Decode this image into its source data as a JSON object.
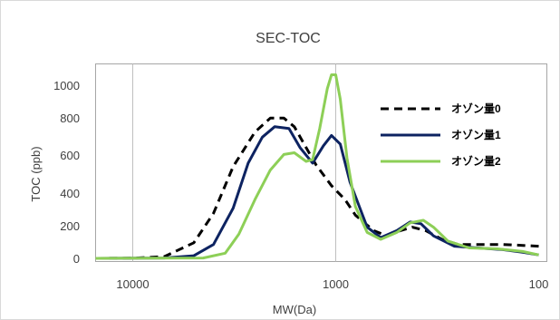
{
  "chart_data": {
    "type": "line",
    "title": "SEC-TOC",
    "xlabel": "MW(Da)",
    "ylabel": "TOC (ppb)",
    "x_scale": "log",
    "x_reversed": true,
    "xlim": [
      20000,
      100
    ],
    "ylim": [
      0,
      1100
    ],
    "x_ticks": [
      10000,
      1000,
      100
    ],
    "x_tick_labels": [
      "10000",
      "1000",
      "100"
    ],
    "y_tick_labels": [
      "0",
      "200",
      "400",
      "600",
      "800",
      "1000"
    ],
    "grid": "vertical",
    "legend_position": "top-right",
    "series": [
      {
        "name": "オゾン量0",
        "color": "#000000",
        "dash": "dashed",
        "x": [
          20000,
          10000,
          7000,
          5000,
          4000,
          3200,
          2500,
          2100,
          1800,
          1600,
          1400,
          1250,
          1050,
          900,
          800,
          650,
          560,
          480,
          420,
          360,
          300,
          250,
          200,
          150,
          120,
          100
        ],
        "y": [
          0,
          1,
          10,
          90,
          260,
          530,
          730,
          810,
          810,
          760,
          640,
          540,
          420,
          340,
          250,
          160,
          130,
          160,
          180,
          160,
          110,
          80,
          80,
          80,
          75,
          70
        ]
      },
      {
        "name": "オゾン量1",
        "color": "#0d2361",
        "dash": "solid",
        "x": [
          20000,
          7000,
          5000,
          4000,
          3200,
          2700,
          2300,
          2000,
          1700,
          1500,
          1300,
          1150,
          1050,
          950,
          850,
          700,
          600,
          500,
          430,
          380,
          330,
          260,
          200,
          150,
          120,
          100
        ],
        "y": [
          0,
          2,
          15,
          80,
          290,
          550,
          700,
          760,
          750,
          640,
          550,
          650,
          710,
          660,
          440,
          180,
          120,
          160,
          210,
          200,
          130,
          70,
          60,
          50,
          35,
          20
        ]
      },
      {
        "name": "オゾン量2",
        "color": "#8dcf57",
        "dash": "solid",
        "x": [
          20000,
          4500,
          3500,
          3000,
          2500,
          2100,
          1800,
          1600,
          1400,
          1300,
          1200,
          1100,
          1050,
          1000,
          950,
          880,
          800,
          700,
          600,
          500,
          430,
          370,
          330,
          280,
          220,
          160,
          120,
          100
        ],
        "y": [
          0,
          2,
          30,
          140,
          340,
          510,
          600,
          610,
          560,
          570,
          750,
          980,
          1060,
          1060,
          920,
          580,
          300,
          150,
          110,
          150,
          205,
          220,
          180,
          100,
          60,
          55,
          40,
          20
        ]
      }
    ]
  }
}
